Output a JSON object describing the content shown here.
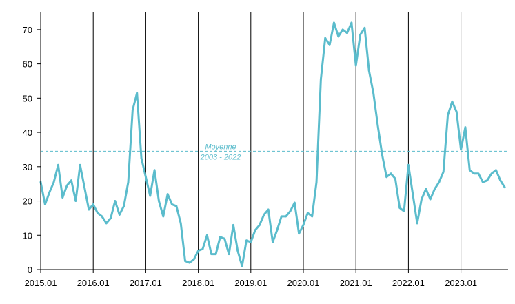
{
  "chart_data": {
    "type": "line",
    "title": "",
    "xlabel": "",
    "ylabel": "",
    "ylim": [
      0,
      75
    ],
    "xlim": [
      "2015.01",
      "2023.10"
    ],
    "grid": "vertical lines at each January",
    "colors": {
      "series": "#5bbccc",
      "mean_line": "#5bbccc",
      "axis": "#000000",
      "text": "#000000"
    },
    "x_tick_labels": [
      "2015.01",
      "2016.01",
      "2017.01",
      "2018.01",
      "2019.01",
      "2020.01",
      "2021.01",
      "2022.01",
      "2023.01"
    ],
    "y_ticks": [
      0,
      10,
      20,
      30,
      40,
      50,
      60,
      70
    ],
    "reference_line": {
      "value": 34.5,
      "label_line1": "Moyenne",
      "label_line2": "2003 - 2022",
      "style": "dashed"
    },
    "series": [
      {
        "values": [
          25.5,
          19.0,
          22.5,
          25.5,
          30.5,
          21.0,
          24.5,
          26.0,
          20.0,
          30.5,
          24.0,
          17.5,
          19.0,
          16.5,
          15.5,
          13.5,
          15.0,
          20.0,
          16.0,
          18.5,
          25.5,
          46.5,
          51.5,
          32.5,
          27.0,
          21.5,
          29.0,
          20.0,
          15.5,
          22.0,
          19.0,
          18.5,
          13.5,
          2.5,
          2.0,
          3.0,
          5.5,
          6.0,
          10.0,
          4.5,
          4.5,
          9.5,
          9.0,
          4.5,
          13.0,
          5.5,
          1.0,
          8.5,
          8.0,
          11.5,
          13.0,
          16.0,
          17.5,
          8.0,
          11.5,
          15.5,
          15.5,
          17.0,
          19.5,
          10.5,
          13.0,
          16.5,
          15.5,
          25.5,
          55.5,
          67.5,
          65.5,
          72.0,
          68.0,
          70.0,
          69.0,
          72.0,
          59.5,
          68.5,
          70.5,
          58.0,
          51.5,
          42.0,
          33.5,
          27.0,
          28.0,
          26.5,
          18.0,
          17.0,
          30.5,
          22.0,
          13.5,
          20.5,
          23.5,
          20.5,
          23.5,
          25.5,
          28.5,
          45.0,
          49.0,
          46.0,
          35.0,
          41.5,
          29.0,
          28.0,
          28.0,
          25.5,
          26.0,
          28.0,
          29.0,
          26.0,
          24.0
        ]
      }
    ]
  }
}
